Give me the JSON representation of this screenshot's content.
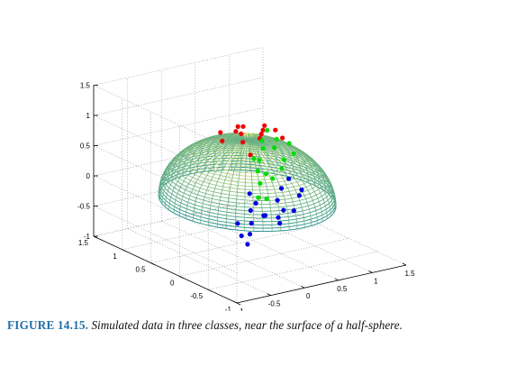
{
  "caption": {
    "label": "FIGURE 14.15.",
    "text": "Simulated data in three classes, near the surface of a half-sphere."
  },
  "chart_data": {
    "type": "scatter",
    "subtype": "3d-scatter-with-wireframe-hemisphere",
    "title": "",
    "xlabel": "",
    "ylabel": "",
    "zlabel": "",
    "xlim": [
      -1,
      1.5
    ],
    "ylim": [
      -1,
      1.5
    ],
    "zlim": [
      -1,
      1.5
    ],
    "x_ticks": [
      "-1",
      "-0.5",
      "0",
      "0.5",
      "1",
      "1.5"
    ],
    "y_ticks": [
      "-1",
      "-0.5",
      "0",
      "0.5",
      "1",
      "1.5"
    ],
    "z_ticks": [
      "-1",
      "-0.5",
      "0",
      "0.5",
      "1",
      "1.5"
    ],
    "grid": true,
    "surface": {
      "shape": "upper half-sphere",
      "radius": 1,
      "colormap": "yellow (top) to teal (base)",
      "color_top": "#f5f57a",
      "color_bottom": "#1a8a8a"
    },
    "series": [
      {
        "color": "#0000dd",
        "points": [
          [
            -0.4,
            -1.0,
            0.55
          ],
          [
            -0.3,
            -0.95,
            0.7
          ],
          [
            -0.15,
            -0.9,
            0.8
          ],
          [
            -0.55,
            -0.8,
            0.45
          ],
          [
            -0.7,
            -0.9,
            0.2
          ],
          [
            -0.8,
            -0.95,
            -0.1
          ],
          [
            -0.2,
            -1.05,
            0.35
          ],
          [
            0.0,
            -0.95,
            0.6
          ],
          [
            -0.5,
            -0.65,
            0.25
          ],
          [
            -0.35,
            -0.7,
            0.15
          ],
          [
            -0.1,
            -0.75,
            0.2
          ],
          [
            0.05,
            -0.85,
            0.45
          ],
          [
            -0.55,
            -0.55,
            -0.2
          ],
          [
            -0.3,
            -0.4,
            -0.3
          ],
          [
            0.1,
            -0.45,
            -0.2
          ],
          [
            -0.2,
            -0.55,
            0.05
          ],
          [
            -0.6,
            -0.75,
            0.6
          ],
          [
            -0.05,
            -0.6,
            0.0
          ],
          [
            -0.65,
            -0.6,
            0.05
          ]
        ]
      },
      {
        "color": "#ee0000",
        "points": [
          [
            0.1,
            -0.1,
            1.05
          ],
          [
            0.25,
            0.05,
            1.02
          ],
          [
            0.4,
            0.2,
            0.98
          ],
          [
            0.0,
            0.2,
            1.06
          ],
          [
            0.55,
            0.35,
            0.95
          ],
          [
            0.2,
            0.4,
            1.0
          ],
          [
            -0.15,
            -0.1,
            1.05
          ],
          [
            0.35,
            -0.2,
            1.04
          ],
          [
            -0.05,
            0.05,
            1.1
          ],
          [
            0.15,
            0.25,
            1.08
          ],
          [
            0.5,
            0.1,
            1.0
          ],
          [
            -0.1,
            0.35,
            1.0
          ],
          [
            0.3,
            0.3,
            0.55
          ],
          [
            -0.2,
            0.2,
            0.95
          ]
        ]
      },
      {
        "color": "#00dd00",
        "points": [
          [
            0.9,
            0.55,
            0.55
          ],
          [
            0.95,
            0.65,
            0.35
          ],
          [
            1.05,
            0.6,
            0.15
          ],
          [
            1.0,
            0.45,
            0.5
          ],
          [
            0.85,
            0.75,
            0.45
          ],
          [
            1.1,
            0.7,
            -0.05
          ],
          [
            1.05,
            0.8,
            -0.25
          ],
          [
            0.9,
            0.95,
            0.05
          ],
          [
            0.8,
            0.6,
            0.7
          ],
          [
            1.15,
            0.55,
            0.25
          ],
          [
            0.95,
            0.9,
            -0.35
          ],
          [
            0.7,
            0.5,
            0.05
          ],
          [
            0.5,
            0.4,
            -0.25
          ],
          [
            0.95,
            0.85,
            0.25
          ],
          [
            0.75,
            0.55,
            -0.4
          ],
          [
            1.0,
            1.0,
            -0.2
          ],
          [
            0.6,
            0.5,
            0.3
          ]
        ]
      }
    ]
  }
}
